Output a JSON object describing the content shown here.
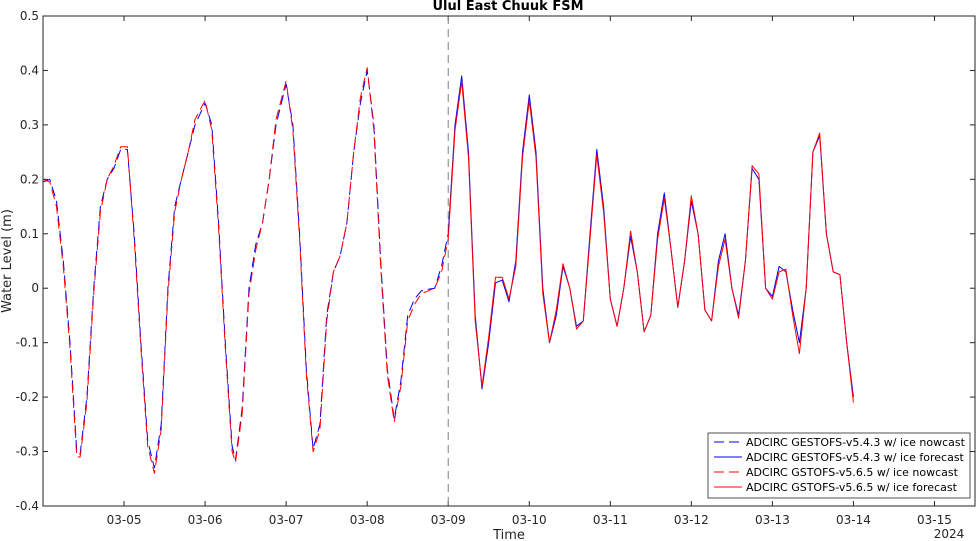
{
  "chart_data": {
    "type": "line",
    "title": "Ulul East Chuuk FSM",
    "xlabel": "Time",
    "ylabel": "Water Level (m)",
    "year_label": "2024",
    "xlim": [
      "2024-03-04 00:00",
      "2024-03-15 12:00"
    ],
    "ylim": [
      -0.4,
      0.5
    ],
    "yticks": [
      -0.4,
      -0.3,
      -0.2,
      -0.1,
      0,
      0.1,
      0.2,
      0.3,
      0.4,
      0.5
    ],
    "ytick_labels": [
      "-0.4",
      "-0.3",
      "-0.2",
      "-0.1",
      "0",
      "0.1",
      "0.2",
      "0.3",
      "0.4",
      "0.5"
    ],
    "xticks": [
      "2024-03-05",
      "2024-03-06",
      "2024-03-07",
      "2024-03-08",
      "2024-03-09",
      "2024-03-10",
      "2024-03-11",
      "2024-03-12",
      "2024-03-13",
      "2024-03-14",
      "2024-03-15"
    ],
    "xtick_labels": [
      "03-05",
      "03-06",
      "03-07",
      "03-08",
      "03-09",
      "03-10",
      "03-11",
      "03-12",
      "03-13",
      "03-14",
      "03-15"
    ],
    "nowcast_forecast_divider": "2024-03-09 00:00",
    "grid": false,
    "legend_position": "bottom-right",
    "colors": {
      "gestofs": "#0000ff",
      "gstofs": "#ff0000",
      "divider": "#808080"
    },
    "series": [
      {
        "name": "ADCIRC GESTOFS-v5.4.3 w/ ice nowcast",
        "color": "#0000ff",
        "style": "dashed",
        "points": [
          [
            "2024-03-04 00:00",
            0.195
          ],
          [
            "2024-03-04 02:00",
            0.2
          ],
          [
            "2024-03-04 04:00",
            0.16
          ],
          [
            "2024-03-04 06:00",
            0.05
          ],
          [
            "2024-03-04 08:00",
            -0.1
          ],
          [
            "2024-03-04 10:00",
            -0.3
          ],
          [
            "2024-03-04 11:00",
            -0.305
          ],
          [
            "2024-03-04 13:00",
            -0.2
          ],
          [
            "2024-03-04 15:00",
            0.0
          ],
          [
            "2024-03-04 17:00",
            0.15
          ],
          [
            "2024-03-04 19:00",
            0.2
          ],
          [
            "2024-03-04 21:00",
            0.22
          ],
          [
            "2024-03-04 23:00",
            0.255
          ],
          [
            "2024-03-05 01:00",
            0.255
          ],
          [
            "2024-03-05 03:00",
            0.1
          ],
          [
            "2024-03-05 05:00",
            -0.1
          ],
          [
            "2024-03-05 07:00",
            -0.28
          ],
          [
            "2024-03-05 09:00",
            -0.33
          ],
          [
            "2024-03-05 11:00",
            -0.25
          ],
          [
            "2024-03-05 13:00",
            0.0
          ],
          [
            "2024-03-05 15:00",
            0.15
          ],
          [
            "2024-03-05 17:00",
            0.2
          ],
          [
            "2024-03-05 19:00",
            0.25
          ],
          [
            "2024-03-05 21:00",
            0.3
          ],
          [
            "2024-03-06 00:00",
            0.34
          ],
          [
            "2024-03-06 02:00",
            0.3
          ],
          [
            "2024-03-06 04:00",
            0.12
          ],
          [
            "2024-03-06 06:00",
            -0.1
          ],
          [
            "2024-03-06 08:00",
            -0.29
          ],
          [
            "2024-03-06 09:00",
            -0.315
          ],
          [
            "2024-03-06 11:00",
            -0.22
          ],
          [
            "2024-03-06 13:00",
            0.0
          ],
          [
            "2024-03-06 15:00",
            0.08
          ],
          [
            "2024-03-06 17:00",
            0.12
          ],
          [
            "2024-03-06 19:00",
            0.2
          ],
          [
            "2024-03-06 21:00",
            0.3
          ],
          [
            "2024-03-07 00:00",
            0.375
          ],
          [
            "2024-03-07 02:00",
            0.3
          ],
          [
            "2024-03-07 04:00",
            0.1
          ],
          [
            "2024-03-07 06:00",
            -0.15
          ],
          [
            "2024-03-07 08:00",
            -0.295
          ],
          [
            "2024-03-07 10:00",
            -0.25
          ],
          [
            "2024-03-07 12:00",
            -0.05
          ],
          [
            "2024-03-07 14:00",
            0.03
          ],
          [
            "2024-03-07 16:00",
            0.06
          ],
          [
            "2024-03-07 18:00",
            0.12
          ],
          [
            "2024-03-07 20:00",
            0.25
          ],
          [
            "2024-03-07 22:00",
            0.34
          ],
          [
            "2024-03-08 00:00",
            0.4
          ],
          [
            "2024-03-08 02:00",
            0.3
          ],
          [
            "2024-03-08 04:00",
            0.05
          ],
          [
            "2024-03-08 06:00",
            -0.15
          ],
          [
            "2024-03-08 08:00",
            -0.24
          ],
          [
            "2024-03-08 10:00",
            -0.17
          ],
          [
            "2024-03-08 12:00",
            -0.05
          ],
          [
            "2024-03-08 14:00",
            -0.02
          ],
          [
            "2024-03-08 16:00",
            -0.005
          ],
          [
            "2024-03-08 18:00",
            -0.002
          ],
          [
            "2024-03-08 20:00",
            0.0
          ],
          [
            "2024-03-08 22:00",
            0.04
          ],
          [
            "2024-03-09 00:00",
            0.1
          ]
        ]
      },
      {
        "name": "ADCIRC GESTOFS-v5.4.3 w/ ice forecast",
        "color": "#0000ff",
        "style": "solid",
        "points": [
          [
            "2024-03-09 00:00",
            0.1
          ],
          [
            "2024-03-09 02:00",
            0.3
          ],
          [
            "2024-03-09 04:00",
            0.39
          ],
          [
            "2024-03-09 06:00",
            0.25
          ],
          [
            "2024-03-09 08:00",
            -0.05
          ],
          [
            "2024-03-09 10:00",
            -0.185
          ],
          [
            "2024-03-09 12:00",
            -0.1
          ],
          [
            "2024-03-09 14:00",
            0.01
          ],
          [
            "2024-03-09 16:00",
            0.015
          ],
          [
            "2024-03-09 18:00",
            -0.025
          ],
          [
            "2024-03-09 20:00",
            0.05
          ],
          [
            "2024-03-09 22:00",
            0.25
          ],
          [
            "2024-03-10 00:00",
            0.355
          ],
          [
            "2024-03-10 02:00",
            0.25
          ],
          [
            "2024-03-10 04:00",
            0.0
          ],
          [
            "2024-03-10 06:00",
            -0.1
          ],
          [
            "2024-03-10 08:00",
            -0.05
          ],
          [
            "2024-03-10 10:00",
            0.04
          ],
          [
            "2024-03-10 12:00",
            0.0
          ],
          [
            "2024-03-10 14:00",
            -0.07
          ],
          [
            "2024-03-10 16:00",
            -0.06
          ],
          [
            "2024-03-10 18:00",
            0.1
          ],
          [
            "2024-03-10 20:00",
            0.255
          ],
          [
            "2024-03-10 22:00",
            0.15
          ],
          [
            "2024-03-11 00:00",
            -0.02
          ],
          [
            "2024-03-11 02:00",
            -0.07
          ],
          [
            "2024-03-11 04:00",
            0.0
          ],
          [
            "2024-03-11 06:00",
            0.095
          ],
          [
            "2024-03-11 08:00",
            0.03
          ],
          [
            "2024-03-11 10:00",
            -0.08
          ],
          [
            "2024-03-11 12:00",
            -0.05
          ],
          [
            "2024-03-11 14:00",
            0.1
          ],
          [
            "2024-03-11 16:00",
            0.175
          ],
          [
            "2024-03-11 18:00",
            0.07
          ],
          [
            "2024-03-11 20:00",
            -0.035
          ],
          [
            "2024-03-11 22:00",
            0.05
          ],
          [
            "2024-03-12 00:00",
            0.16
          ],
          [
            "2024-03-12 02:00",
            0.1
          ],
          [
            "2024-03-12 04:00",
            -0.04
          ],
          [
            "2024-03-12 06:00",
            -0.06
          ],
          [
            "2024-03-12 08:00",
            0.05
          ],
          [
            "2024-03-12 10:00",
            0.1
          ],
          [
            "2024-03-12 12:00",
            0.0
          ],
          [
            "2024-03-12 14:00",
            -0.05
          ],
          [
            "2024-03-12 16:00",
            0.05
          ],
          [
            "2024-03-12 18:00",
            0.22
          ],
          [
            "2024-03-12 20:00",
            0.2
          ],
          [
            "2024-03-12 22:00",
            0.0
          ],
          [
            "2024-03-13 00:00",
            -0.015
          ],
          [
            "2024-03-13 02:00",
            0.04
          ],
          [
            "2024-03-13 04:00",
            0.03
          ],
          [
            "2024-03-13 06:00",
            -0.04
          ],
          [
            "2024-03-13 08:00",
            -0.1
          ],
          [
            "2024-03-13 10:00",
            0.0
          ],
          [
            "2024-03-13 12:00",
            0.25
          ],
          [
            "2024-03-13 14:00",
            0.28
          ],
          [
            "2024-03-13 16:00",
            0.1
          ],
          [
            "2024-03-13 18:00",
            0.03
          ],
          [
            "2024-03-13 20:00",
            0.025
          ],
          [
            "2024-03-13 22:00",
            -0.1
          ],
          [
            "2024-03-14 00:00",
            -0.2
          ]
        ]
      },
      {
        "name": "ADCIRC GSTOFS-v5.6.5 w/ ice nowcast",
        "color": "#ff0000",
        "style": "dashed",
        "points": [
          [
            "2024-03-04 00:00",
            0.2
          ],
          [
            "2024-03-04 02:00",
            0.195
          ],
          [
            "2024-03-04 04:00",
            0.15
          ],
          [
            "2024-03-04 06:00",
            0.04
          ],
          [
            "2024-03-04 08:00",
            -0.11
          ],
          [
            "2024-03-04 10:00",
            -0.31
          ],
          [
            "2024-03-04 11:00",
            -0.31
          ],
          [
            "2024-03-04 13:00",
            -0.21
          ],
          [
            "2024-03-04 15:00",
            -0.01
          ],
          [
            "2024-03-04 17:00",
            0.14
          ],
          [
            "2024-03-04 19:00",
            0.2
          ],
          [
            "2024-03-04 21:00",
            0.225
          ],
          [
            "2024-03-04 23:00",
            0.26
          ],
          [
            "2024-03-05 01:00",
            0.26
          ],
          [
            "2024-03-05 03:00",
            0.09
          ],
          [
            "2024-03-05 05:00",
            -0.11
          ],
          [
            "2024-03-05 07:00",
            -0.29
          ],
          [
            "2024-03-05 09:00",
            -0.34
          ],
          [
            "2024-03-05 11:00",
            -0.26
          ],
          [
            "2024-03-05 13:00",
            -0.01
          ],
          [
            "2024-03-05 15:00",
            0.14
          ],
          [
            "2024-03-05 17:00",
            0.2
          ],
          [
            "2024-03-05 19:00",
            0.25
          ],
          [
            "2024-03-05 21:00",
            0.31
          ],
          [
            "2024-03-06 00:00",
            0.345
          ],
          [
            "2024-03-06 02:00",
            0.29
          ],
          [
            "2024-03-06 04:00",
            0.11
          ],
          [
            "2024-03-06 06:00",
            -0.11
          ],
          [
            "2024-03-06 08:00",
            -0.3
          ],
          [
            "2024-03-06 09:00",
            -0.32
          ],
          [
            "2024-03-06 11:00",
            -0.23
          ],
          [
            "2024-03-06 13:00",
            -0.01
          ],
          [
            "2024-03-06 15:00",
            0.07
          ],
          [
            "2024-03-06 17:00",
            0.12
          ],
          [
            "2024-03-06 19:00",
            0.2
          ],
          [
            "2024-03-06 21:00",
            0.31
          ],
          [
            "2024-03-07 00:00",
            0.38
          ],
          [
            "2024-03-07 02:00",
            0.29
          ],
          [
            "2024-03-07 04:00",
            0.09
          ],
          [
            "2024-03-07 06:00",
            -0.16
          ],
          [
            "2024-03-07 08:00",
            -0.3
          ],
          [
            "2024-03-07 10:00",
            -0.26
          ],
          [
            "2024-03-07 12:00",
            -0.06
          ],
          [
            "2024-03-07 14:00",
            0.03
          ],
          [
            "2024-03-07 16:00",
            0.06
          ],
          [
            "2024-03-07 18:00",
            0.12
          ],
          [
            "2024-03-07 20:00",
            0.25
          ],
          [
            "2024-03-07 22:00",
            0.35
          ],
          [
            "2024-03-08 00:00",
            0.405
          ],
          [
            "2024-03-08 02:00",
            0.29
          ],
          [
            "2024-03-08 04:00",
            0.04
          ],
          [
            "2024-03-08 06:00",
            -0.16
          ],
          [
            "2024-03-08 08:00",
            -0.245
          ],
          [
            "2024-03-08 10:00",
            -0.18
          ],
          [
            "2024-03-08 12:00",
            -0.06
          ],
          [
            "2024-03-08 14:00",
            -0.03
          ],
          [
            "2024-03-08 16:00",
            -0.01
          ],
          [
            "2024-03-08 18:00",
            -0.005
          ],
          [
            "2024-03-08 20:00",
            0.0
          ],
          [
            "2024-03-08 22:00",
            0.03
          ],
          [
            "2024-03-09 00:00",
            0.09
          ]
        ]
      },
      {
        "name": "ADCIRC GSTOFS-v5.6.5 w/ ice forecast",
        "color": "#ff0000",
        "style": "solid",
        "points": [
          [
            "2024-03-09 00:00",
            0.09
          ],
          [
            "2024-03-09 02:00",
            0.29
          ],
          [
            "2024-03-09 04:00",
            0.38
          ],
          [
            "2024-03-09 06:00",
            0.24
          ],
          [
            "2024-03-09 08:00",
            -0.06
          ],
          [
            "2024-03-09 10:00",
            -0.18
          ],
          [
            "2024-03-09 12:00",
            -0.09
          ],
          [
            "2024-03-09 14:00",
            0.02
          ],
          [
            "2024-03-09 16:00",
            0.02
          ],
          [
            "2024-03-09 18:00",
            -0.02
          ],
          [
            "2024-03-09 20:00",
            0.04
          ],
          [
            "2024-03-09 22:00",
            0.24
          ],
          [
            "2024-03-10 00:00",
            0.345
          ],
          [
            "2024-03-10 02:00",
            0.24
          ],
          [
            "2024-03-10 04:00",
            -0.01
          ],
          [
            "2024-03-10 06:00",
            -0.1
          ],
          [
            "2024-03-10 08:00",
            -0.04
          ],
          [
            "2024-03-10 10:00",
            0.045
          ],
          [
            "2024-03-10 12:00",
            0.0
          ],
          [
            "2024-03-10 14:00",
            -0.075
          ],
          [
            "2024-03-10 16:00",
            -0.06
          ],
          [
            "2024-03-10 18:00",
            0.09
          ],
          [
            "2024-03-10 20:00",
            0.245
          ],
          [
            "2024-03-10 22:00",
            0.14
          ],
          [
            "2024-03-11 00:00",
            -0.02
          ],
          [
            "2024-03-11 02:00",
            -0.07
          ],
          [
            "2024-03-11 04:00",
            0.0
          ],
          [
            "2024-03-11 06:00",
            0.105
          ],
          [
            "2024-03-11 08:00",
            0.03
          ],
          [
            "2024-03-11 10:00",
            -0.08
          ],
          [
            "2024-03-11 12:00",
            -0.05
          ],
          [
            "2024-03-11 14:00",
            0.09
          ],
          [
            "2024-03-11 16:00",
            0.165
          ],
          [
            "2024-03-11 18:00",
            0.07
          ],
          [
            "2024-03-11 20:00",
            -0.035
          ],
          [
            "2024-03-11 22:00",
            0.05
          ],
          [
            "2024-03-12 00:00",
            0.17
          ],
          [
            "2024-03-12 02:00",
            0.1
          ],
          [
            "2024-03-12 04:00",
            -0.04
          ],
          [
            "2024-03-12 06:00",
            -0.06
          ],
          [
            "2024-03-12 08:00",
            0.04
          ],
          [
            "2024-03-12 10:00",
            0.09
          ],
          [
            "2024-03-12 12:00",
            0.0
          ],
          [
            "2024-03-12 14:00",
            -0.055
          ],
          [
            "2024-03-12 16:00",
            0.05
          ],
          [
            "2024-03-12 18:00",
            0.225
          ],
          [
            "2024-03-12 20:00",
            0.21
          ],
          [
            "2024-03-12 22:00",
            0.0
          ],
          [
            "2024-03-13 00:00",
            -0.02
          ],
          [
            "2024-03-13 02:00",
            0.03
          ],
          [
            "2024-03-13 04:00",
            0.035
          ],
          [
            "2024-03-13 06:00",
            -0.05
          ],
          [
            "2024-03-13 08:00",
            -0.12
          ],
          [
            "2024-03-13 10:00",
            0.0
          ],
          [
            "2024-03-13 12:00",
            0.25
          ],
          [
            "2024-03-13 14:00",
            0.285
          ],
          [
            "2024-03-13 16:00",
            0.1
          ],
          [
            "2024-03-13 18:00",
            0.03
          ],
          [
            "2024-03-13 20:00",
            0.025
          ],
          [
            "2024-03-13 22:00",
            -0.1
          ],
          [
            "2024-03-14 00:00",
            -0.21
          ]
        ]
      }
    ]
  }
}
